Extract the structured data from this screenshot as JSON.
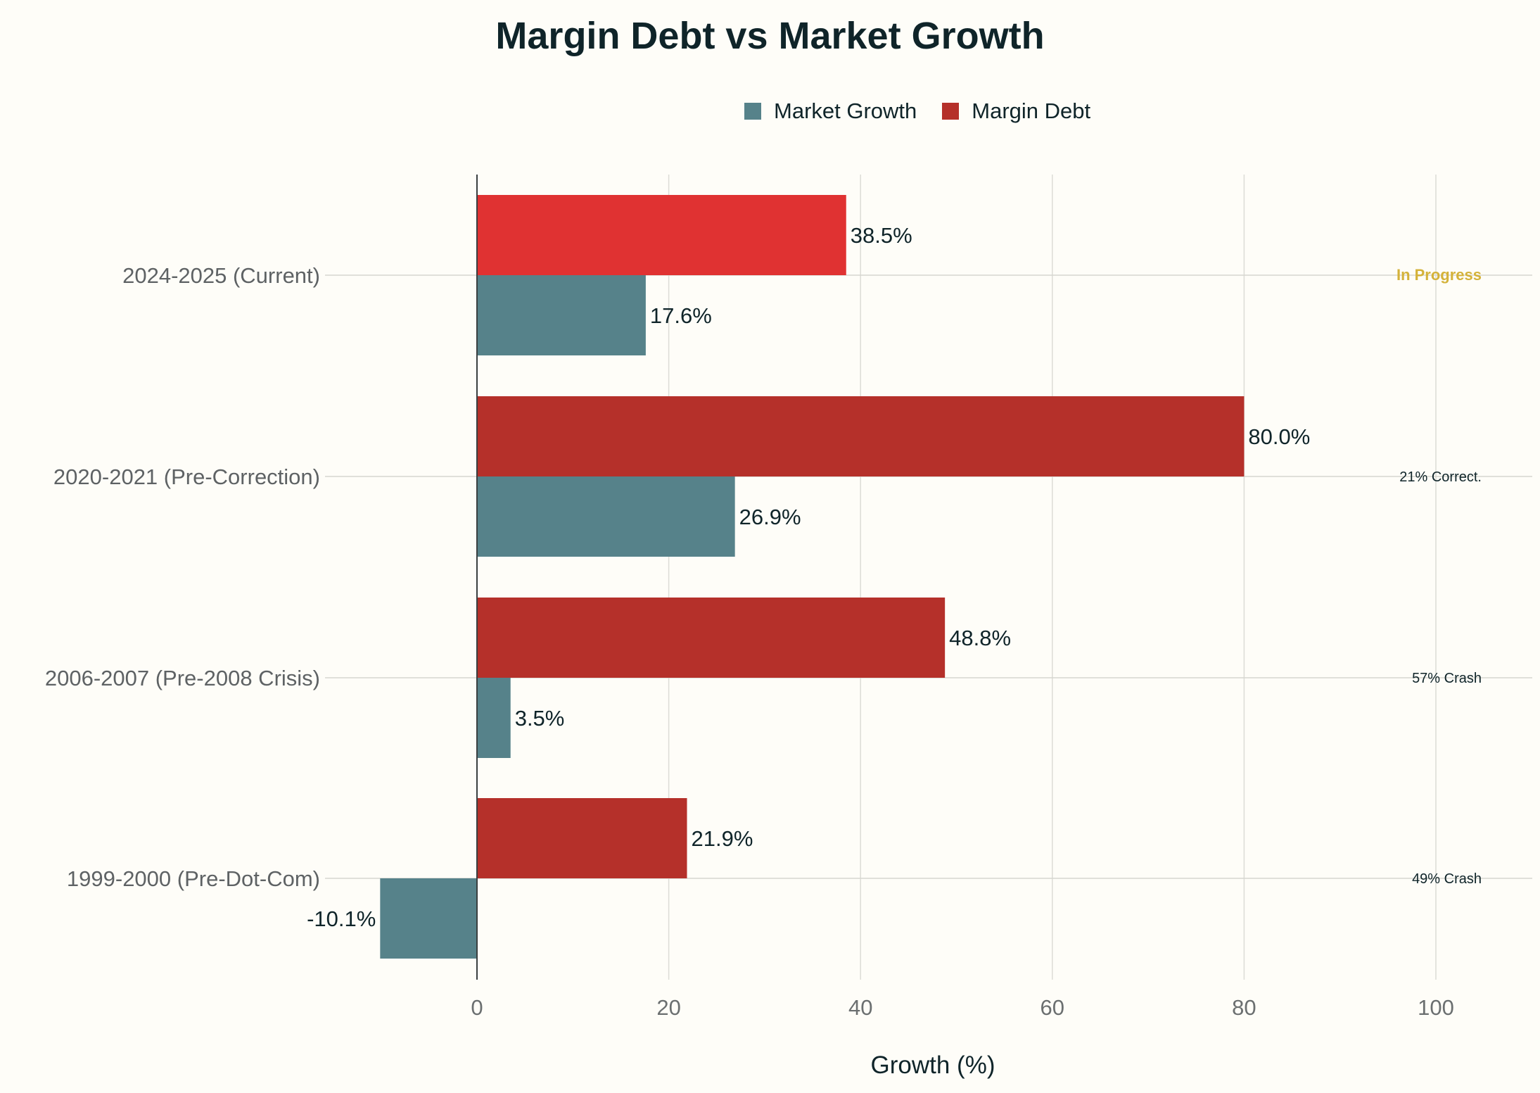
{
  "chart_data": {
    "type": "bar",
    "orientation": "horizontal",
    "title": "Margin Debt vs Market Growth",
    "xlabel": "Growth (%)",
    "ylabel": "",
    "xlim": [
      -13,
      110
    ],
    "xticks": [
      0,
      20,
      40,
      60,
      80,
      100
    ],
    "grid": true,
    "legend_placement": "top",
    "categories": [
      "2024-2025 (Current)",
      "2020-2021 (Pre-Correction)",
      "2006-2007 (Pre-2008 Crisis)",
      "1999-2000 (Pre-Dot-Com)"
    ],
    "series": [
      {
        "name": "Market Growth",
        "values": [
          17.6,
          26.9,
          3.5,
          -10.1
        ],
        "labels": [
          "17.6%",
          "26.9%",
          "3.5%",
          "-10.1%"
        ],
        "color": "#56828A"
      },
      {
        "name": "Margin Debt",
        "values": [
          38.5,
          80.0,
          48.8,
          21.9
        ],
        "labels": [
          "38.5%",
          "80.0%",
          "48.8%",
          "21.9%"
        ],
        "color": "#B5302A",
        "highlight_color": "#E03232"
      }
    ],
    "annotations": [
      {
        "text": "In Progress",
        "color": "#D4B23A"
      },
      {
        "text": "21% Correct.",
        "color": "#0F2429"
      },
      {
        "text": "57% Crash",
        "color": "#0F2429"
      },
      {
        "text": "49% Crash",
        "color": "#0F2429"
      }
    ]
  }
}
